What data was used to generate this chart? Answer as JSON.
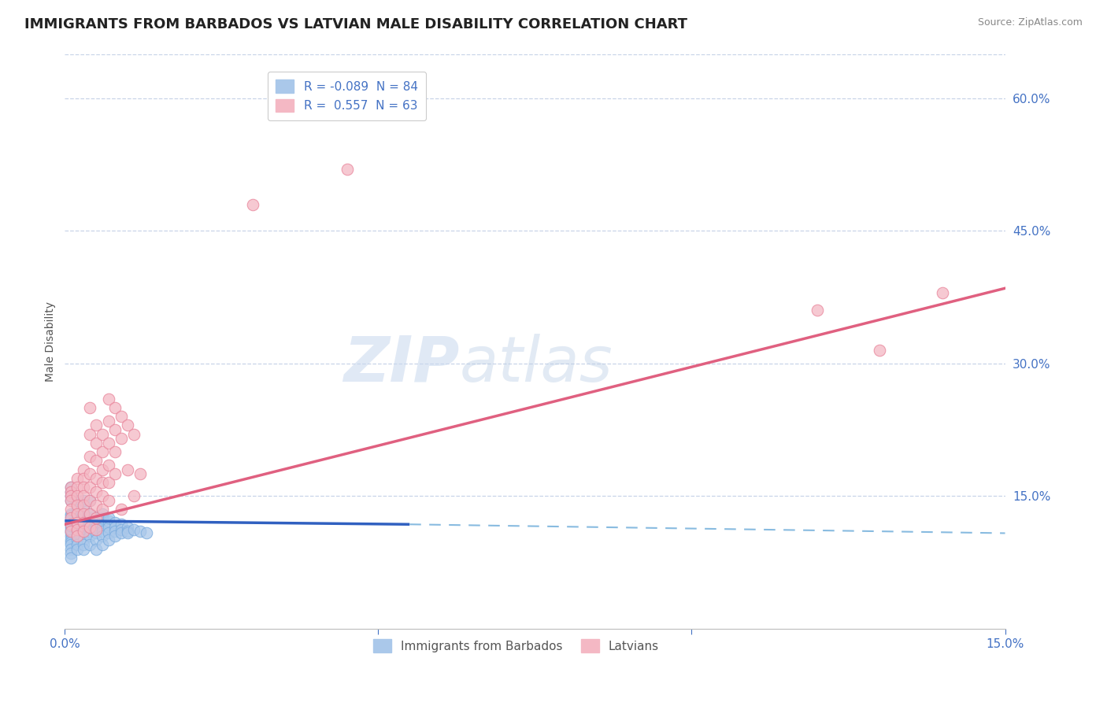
{
  "title": "IMMIGRANTS FROM BARBADOS VS LATVIAN MALE DISABILITY CORRELATION CHART",
  "source": "Source: ZipAtlas.com",
  "ylabel": "Male Disability",
  "xlim": [
    0.0,
    0.15
  ],
  "ylim": [
    0.0,
    0.65
  ],
  "y_ticks_right": [
    0.15,
    0.3,
    0.45,
    0.6
  ],
  "y_tick_labels_right": [
    "15.0%",
    "30.0%",
    "45.0%",
    "60.0%"
  ],
  "watermark": "ZIPatlas",
  "background_color": "#ffffff",
  "grid_color": "#c8d4e8",
  "blue_scatter": [
    [
      0.001,
      0.115
    ],
    [
      0.001,
      0.12
    ],
    [
      0.001,
      0.11
    ],
    [
      0.001,
      0.118
    ],
    [
      0.001,
      0.105
    ],
    [
      0.001,
      0.108
    ],
    [
      0.001,
      0.112
    ],
    [
      0.001,
      0.116
    ],
    [
      0.001,
      0.122
    ],
    [
      0.001,
      0.125
    ],
    [
      0.001,
      0.13
    ],
    [
      0.001,
      0.128
    ],
    [
      0.001,
      0.1
    ],
    [
      0.001,
      0.098
    ],
    [
      0.001,
      0.095
    ],
    [
      0.001,
      0.09
    ],
    [
      0.001,
      0.145
    ],
    [
      0.001,
      0.15
    ],
    [
      0.001,
      0.155
    ],
    [
      0.001,
      0.16
    ],
    [
      0.001,
      0.085
    ],
    [
      0.001,
      0.08
    ],
    [
      0.002,
      0.118
    ],
    [
      0.002,
      0.122
    ],
    [
      0.002,
      0.115
    ],
    [
      0.002,
      0.112
    ],
    [
      0.002,
      0.108
    ],
    [
      0.002,
      0.125
    ],
    [
      0.002,
      0.13
    ],
    [
      0.002,
      0.135
    ],
    [
      0.002,
      0.1
    ],
    [
      0.002,
      0.095
    ],
    [
      0.002,
      0.09
    ],
    [
      0.002,
      0.145
    ],
    [
      0.003,
      0.118
    ],
    [
      0.003,
      0.122
    ],
    [
      0.003,
      0.128
    ],
    [
      0.003,
      0.115
    ],
    [
      0.003,
      0.112
    ],
    [
      0.003,
      0.108
    ],
    [
      0.003,
      0.125
    ],
    [
      0.003,
      0.135
    ],
    [
      0.003,
      0.1
    ],
    [
      0.003,
      0.095
    ],
    [
      0.003,
      0.09
    ],
    [
      0.003,
      0.145
    ],
    [
      0.004,
      0.12
    ],
    [
      0.004,
      0.115
    ],
    [
      0.004,
      0.125
    ],
    [
      0.004,
      0.11
    ],
    [
      0.004,
      0.13
    ],
    [
      0.004,
      0.105
    ],
    [
      0.004,
      0.095
    ],
    [
      0.004,
      0.145
    ],
    [
      0.005,
      0.118
    ],
    [
      0.005,
      0.122
    ],
    [
      0.005,
      0.115
    ],
    [
      0.005,
      0.108
    ],
    [
      0.005,
      0.125
    ],
    [
      0.005,
      0.1
    ],
    [
      0.005,
      0.09
    ],
    [
      0.006,
      0.12
    ],
    [
      0.006,
      0.115
    ],
    [
      0.006,
      0.125
    ],
    [
      0.006,
      0.11
    ],
    [
      0.006,
      0.105
    ],
    [
      0.006,
      0.13
    ],
    [
      0.006,
      0.095
    ],
    [
      0.007,
      0.118
    ],
    [
      0.007,
      0.122
    ],
    [
      0.007,
      0.115
    ],
    [
      0.007,
      0.108
    ],
    [
      0.007,
      0.125
    ],
    [
      0.007,
      0.1
    ],
    [
      0.008,
      0.12
    ],
    [
      0.008,
      0.115
    ],
    [
      0.008,
      0.11
    ],
    [
      0.008,
      0.105
    ],
    [
      0.009,
      0.118
    ],
    [
      0.009,
      0.112
    ],
    [
      0.009,
      0.108
    ],
    [
      0.01,
      0.115
    ],
    [
      0.01,
      0.11
    ],
    [
      0.01,
      0.108
    ],
    [
      0.011,
      0.112
    ],
    [
      0.012,
      0.11
    ],
    [
      0.013,
      0.108
    ]
  ],
  "pink_scatter": [
    [
      0.001,
      0.16
    ],
    [
      0.001,
      0.155
    ],
    [
      0.001,
      0.15
    ],
    [
      0.001,
      0.145
    ],
    [
      0.001,
      0.135
    ],
    [
      0.001,
      0.125
    ],
    [
      0.001,
      0.118
    ],
    [
      0.001,
      0.11
    ],
    [
      0.002,
      0.17
    ],
    [
      0.002,
      0.16
    ],
    [
      0.002,
      0.15
    ],
    [
      0.002,
      0.14
    ],
    [
      0.002,
      0.13
    ],
    [
      0.002,
      0.12
    ],
    [
      0.002,
      0.112
    ],
    [
      0.002,
      0.105
    ],
    [
      0.003,
      0.18
    ],
    [
      0.003,
      0.17
    ],
    [
      0.003,
      0.16
    ],
    [
      0.003,
      0.15
    ],
    [
      0.003,
      0.14
    ],
    [
      0.003,
      0.13
    ],
    [
      0.003,
      0.12
    ],
    [
      0.003,
      0.11
    ],
    [
      0.004,
      0.25
    ],
    [
      0.004,
      0.22
    ],
    [
      0.004,
      0.195
    ],
    [
      0.004,
      0.175
    ],
    [
      0.004,
      0.16
    ],
    [
      0.004,
      0.145
    ],
    [
      0.004,
      0.13
    ],
    [
      0.004,
      0.115
    ],
    [
      0.005,
      0.23
    ],
    [
      0.005,
      0.21
    ],
    [
      0.005,
      0.19
    ],
    [
      0.005,
      0.17
    ],
    [
      0.005,
      0.155
    ],
    [
      0.005,
      0.14
    ],
    [
      0.005,
      0.125
    ],
    [
      0.005,
      0.112
    ],
    [
      0.006,
      0.22
    ],
    [
      0.006,
      0.2
    ],
    [
      0.006,
      0.18
    ],
    [
      0.006,
      0.165
    ],
    [
      0.006,
      0.15
    ],
    [
      0.006,
      0.135
    ],
    [
      0.007,
      0.26
    ],
    [
      0.007,
      0.235
    ],
    [
      0.007,
      0.21
    ],
    [
      0.007,
      0.185
    ],
    [
      0.007,
      0.165
    ],
    [
      0.007,
      0.145
    ],
    [
      0.008,
      0.25
    ],
    [
      0.008,
      0.225
    ],
    [
      0.008,
      0.2
    ],
    [
      0.008,
      0.175
    ],
    [
      0.009,
      0.24
    ],
    [
      0.009,
      0.215
    ],
    [
      0.009,
      0.135
    ],
    [
      0.01,
      0.23
    ],
    [
      0.01,
      0.18
    ],
    [
      0.011,
      0.22
    ],
    [
      0.011,
      0.15
    ],
    [
      0.012,
      0.175
    ],
    [
      0.12,
      0.36
    ],
    [
      0.13,
      0.315
    ],
    [
      0.14,
      0.38
    ],
    [
      0.03,
      0.48
    ],
    [
      0.045,
      0.52
    ]
  ],
  "blue_line_solid": {
    "x": [
      0.0,
      0.055
    ],
    "y": [
      0.122,
      0.118
    ]
  },
  "blue_line_dashed": {
    "x": [
      0.055,
      0.15
    ],
    "y": [
      0.118,
      0.108
    ]
  },
  "pink_line": {
    "x": [
      0.0,
      0.15
    ],
    "y": [
      0.118,
      0.385
    ]
  },
  "title_color": "#222222",
  "title_fontsize": 13,
  "axis_label_color": "#4472c4"
}
